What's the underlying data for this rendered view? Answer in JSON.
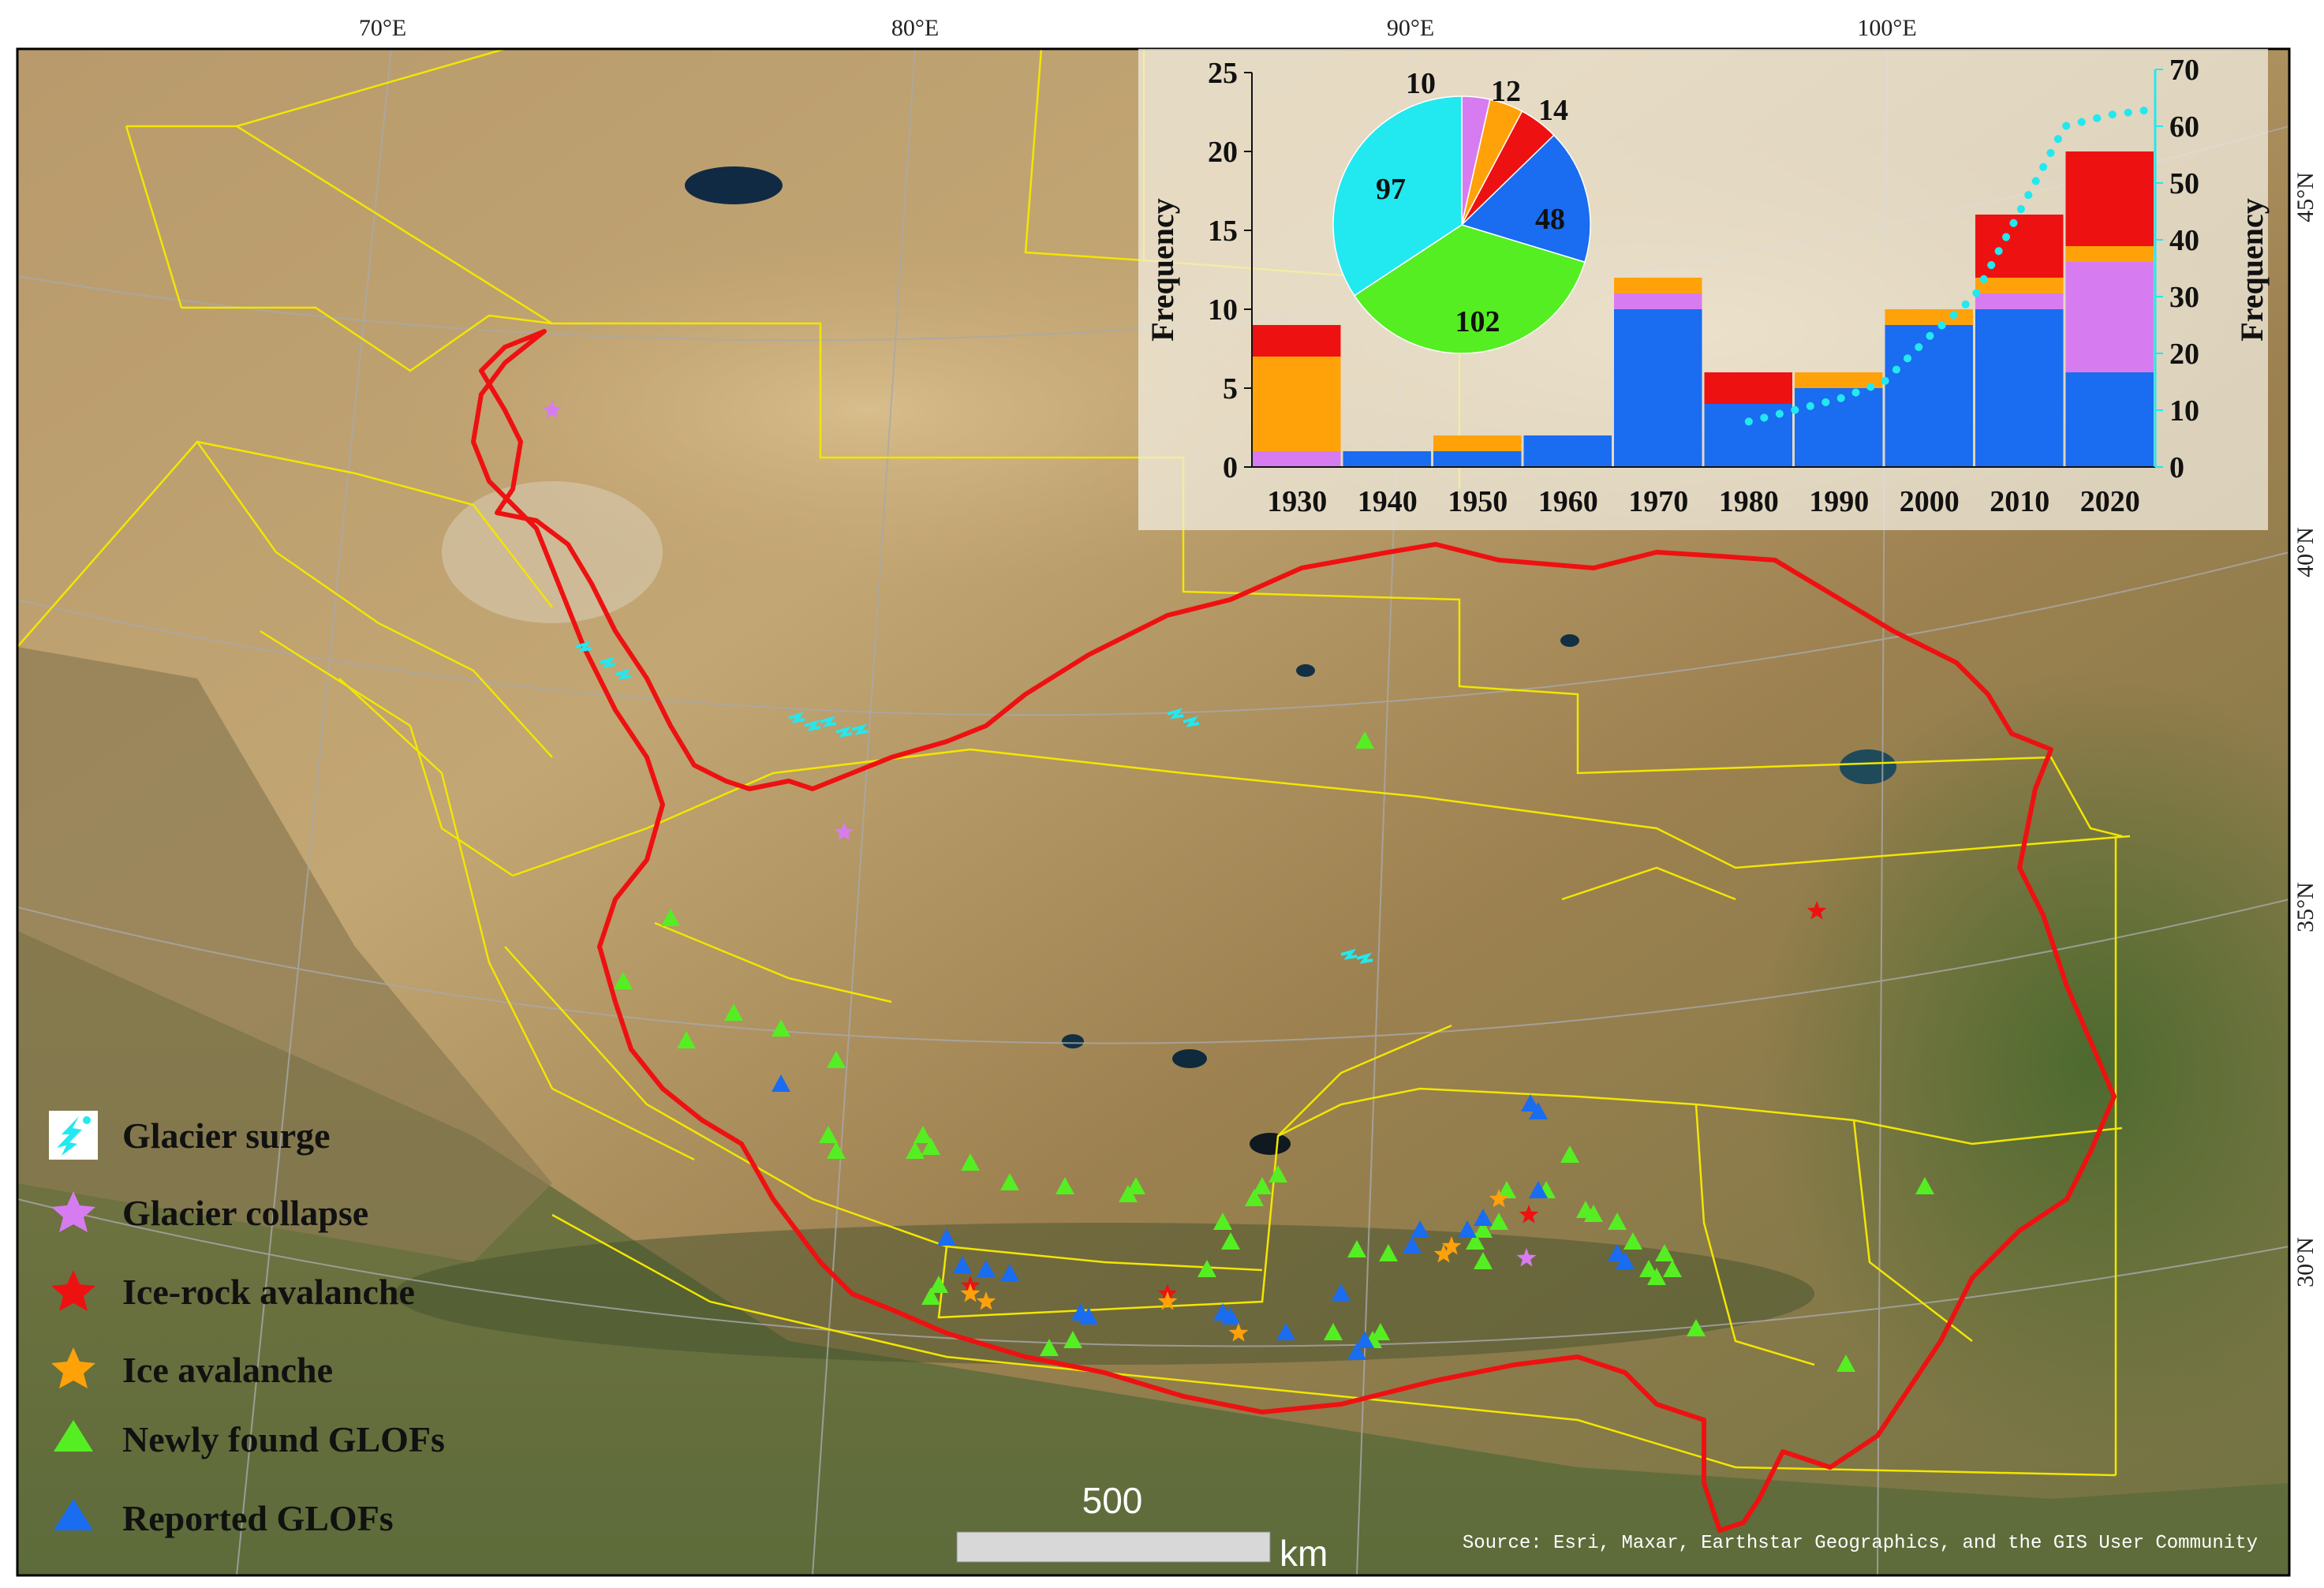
{
  "map": {
    "lon_labels": [
      "70°E",
      "80°E",
      "90°E",
      "100°E"
    ],
    "lat_labels": [
      "45°N",
      "40°N",
      "35°N",
      "30°N"
    ],
    "source": "Source: Esri, Maxar, Earthstar Geographics, and the GIS User Community",
    "scale_value": "500",
    "scale_unit": "km",
    "colors": {
      "boundary": "#ee1111",
      "basins": "#f2e600",
      "glacier_surge": "#22e8f0",
      "glacier_collapse": "#d77cf0",
      "ice_rock_avalanche": "#ee1111",
      "ice_avalanche": "#ffa20a",
      "newly_found_glofs": "#55ee22",
      "reported_glofs": "#1a6cf0"
    }
  },
  "legend": {
    "items": [
      {
        "label": "Glacier surge",
        "icon": "glacier-surge-icon",
        "color": "#22e8f0"
      },
      {
        "label": "Glacier collapse",
        "icon": "star-icon",
        "color": "#d77cf0"
      },
      {
        "label": "Ice-rock avalanche",
        "icon": "star-icon",
        "color": "#ee1111"
      },
      {
        "label": "Ice avalanche",
        "icon": "star-icon",
        "color": "#ffa20a"
      },
      {
        "label": "Newly found GLOFs",
        "icon": "triangle-icon",
        "color": "#55ee22"
      },
      {
        "label": "Reported GLOFs",
        "icon": "triangle-icon",
        "color": "#1a6cf0"
      }
    ]
  },
  "chart_data": [
    {
      "type": "bar",
      "stacked": true,
      "categories": [
        "1930",
        "1940",
        "1950",
        "1960",
        "1970",
        "1980",
        "1990",
        "2000",
        "2010",
        "2020"
      ],
      "series": [
        {
          "color": "#1a6cf0",
          "values": [
            0,
            1,
            1,
            2,
            10,
            4,
            5,
            9,
            10,
            6
          ]
        },
        {
          "color": "#d77cf0",
          "values": [
            1,
            0,
            0,
            0,
            1,
            0,
            0,
            0,
            1,
            7
          ]
        },
        {
          "color": "#ffa20a",
          "values": [
            6,
            0,
            1,
            0,
            1,
            0,
            1,
            1,
            1,
            1
          ]
        },
        {
          "color": "#ee1111",
          "values": [
            2,
            0,
            0,
            0,
            0,
            2,
            0,
            0,
            4,
            6
          ]
        }
      ],
      "ylabel": "Frequency",
      "ylim": [
        0,
        25
      ],
      "yticks": [
        0,
        5,
        10,
        15,
        20,
        25
      ],
      "secondary_axis": {
        "ylabel": "Frequency",
        "ylim": [
          0,
          70
        ],
        "yticks": [
          0,
          10,
          20,
          30,
          40,
          50,
          60,
          70
        ],
        "color": "#22e8f0",
        "style": "dotted",
        "x": [
          1980,
          1985,
          1990,
          1995,
          2000,
          2005,
          2010,
          2015,
          2020,
          2025
        ],
        "values": [
          8,
          10,
          12,
          15,
          23,
          30,
          45,
          60,
          62,
          63
        ]
      },
      "grid": false
    },
    {
      "type": "pie",
      "slices": [
        {
          "label": "10",
          "value": 10,
          "color": "#d77cf0"
        },
        {
          "label": "12",
          "value": 12,
          "color": "#ffa20a"
        },
        {
          "label": "14",
          "value": 14,
          "color": "#ee1111"
        },
        {
          "label": "48",
          "value": 48,
          "color": "#1a6cf0"
        },
        {
          "label": "102",
          "value": 102,
          "color": "#55ee22"
        },
        {
          "label": "97",
          "value": 97,
          "color": "#22e8f0"
        }
      ]
    }
  ]
}
